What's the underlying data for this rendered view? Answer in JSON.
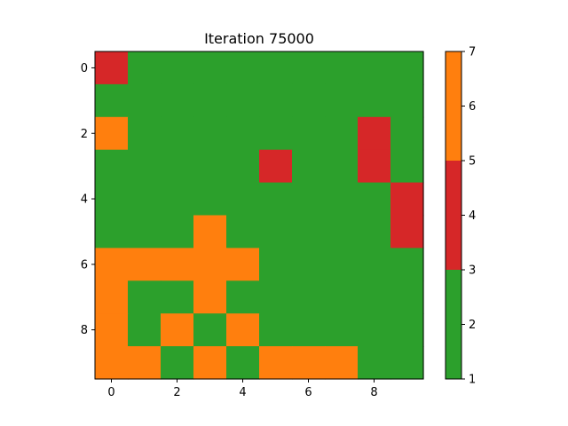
{
  "chart_data": {
    "type": "heatmap",
    "title": "Iteration 75000",
    "xlabel": "",
    "ylabel": "",
    "x_ticks": [
      "0",
      "2",
      "4",
      "6",
      "8"
    ],
    "y_ticks": [
      "0",
      "2",
      "4",
      "6",
      "8"
    ],
    "grid": [
      [
        4,
        2,
        2,
        2,
        2,
        2,
        2,
        2,
        2,
        2
      ],
      [
        2,
        2,
        2,
        2,
        2,
        2,
        2,
        2,
        2,
        2
      ],
      [
        6,
        2,
        2,
        2,
        2,
        2,
        2,
        2,
        4,
        2
      ],
      [
        2,
        2,
        2,
        2,
        2,
        4,
        2,
        2,
        4,
        2
      ],
      [
        2,
        2,
        2,
        2,
        2,
        2,
        2,
        2,
        2,
        4
      ],
      [
        2,
        2,
        2,
        6,
        2,
        2,
        2,
        2,
        2,
        4
      ],
      [
        6,
        6,
        6,
        6,
        6,
        2,
        2,
        2,
        2,
        2
      ],
      [
        6,
        2,
        2,
        6,
        2,
        2,
        2,
        2,
        2,
        2
      ],
      [
        6,
        2,
        6,
        2,
        6,
        2,
        2,
        2,
        2,
        2
      ],
      [
        6,
        6,
        2,
        6,
        2,
        6,
        6,
        6,
        2,
        2
      ]
    ],
    "colorbar": {
      "range": [
        1,
        7
      ],
      "ticks": [
        "1",
        "2",
        "3",
        "4",
        "5",
        "6",
        "7"
      ],
      "bands": [
        {
          "from": 1,
          "to": 3,
          "color": "#2ca02c"
        },
        {
          "from": 3,
          "to": 5,
          "color": "#d62728"
        },
        {
          "from": 5,
          "to": 7,
          "color": "#ff7f0e"
        }
      ]
    },
    "grid_lines": false,
    "legend": "none"
  }
}
